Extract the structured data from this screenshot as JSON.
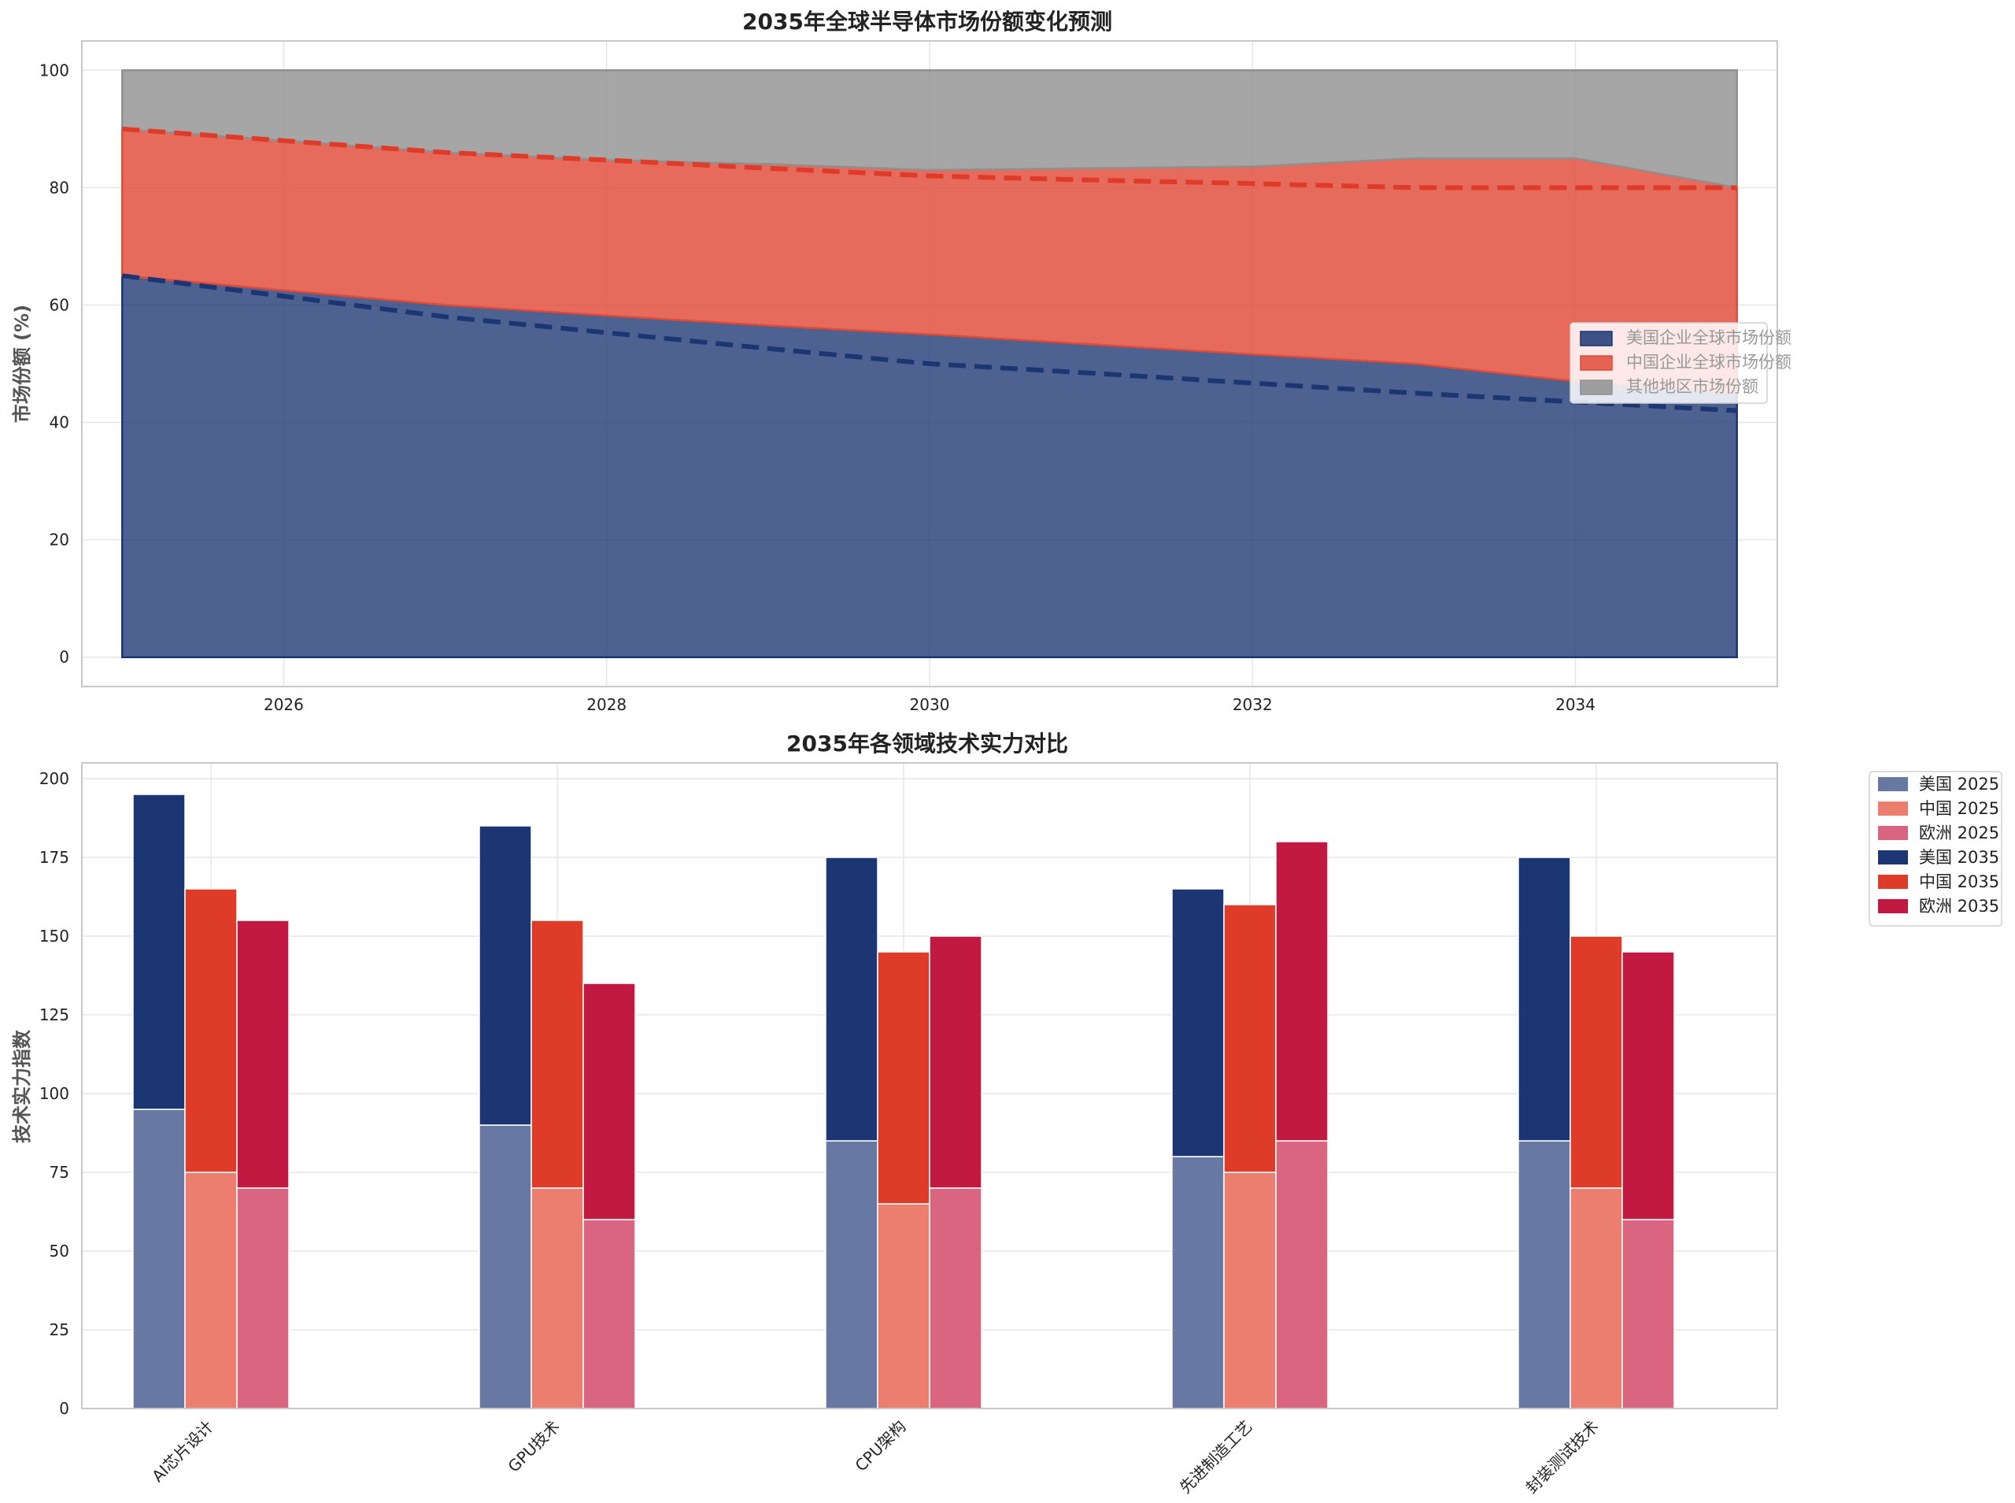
{
  "chart_data": [
    {
      "type": "area",
      "title": "2035年全球半导体市场份额变化预测",
      "xlabel": "",
      "ylabel": "市场份额 (%)",
      "xlim": [
        2024.75,
        2035.25
      ],
      "ylim": [
        -5,
        105
      ],
      "x_ticks": [
        2026,
        2028,
        2030,
        2032,
        2034
      ],
      "y_ticks": [
        0,
        20,
        40,
        60,
        80,
        100
      ],
      "grid": true,
      "legend_position": "center-right",
      "x": [
        2025,
        2026,
        2027,
        2028,
        2029,
        2030,
        2031,
        2032,
        2033,
        2034,
        2035
      ],
      "series": [
        {
          "name": "美国企业全球市场份额",
          "color": "#1b3672",
          "values": [
            65,
            62.5,
            60,
            58.2,
            56.5,
            55,
            53.3,
            51.6,
            50,
            47,
            45
          ]
        },
        {
          "name": "中国企业全球市场份额",
          "color": "#e04b38",
          "values": [
            25,
            25.5,
            26,
            26.5,
            27.5,
            28,
            30,
            32,
            35,
            38,
            35
          ]
        },
        {
          "name": "其他地区市场份额",
          "color": "#909090",
          "values": [
            10,
            12,
            14,
            15.3,
            16,
            17,
            16.7,
            16.4,
            15,
            15,
            20
          ]
        }
      ],
      "reference_lines": [
        {
          "name": "us_trend",
          "color": "#1b3672",
          "values": [
            65,
            61.5,
            58,
            55.3,
            52.6,
            50,
            48.4,
            46.7,
            45,
            43.5,
            42
          ]
        },
        {
          "name": "us_cn_trend",
          "color": "#e03a28",
          "values": [
            90,
            88,
            86,
            84.7,
            83.3,
            82,
            81.3,
            80.7,
            80,
            80,
            80
          ]
        }
      ]
    },
    {
      "type": "bar",
      "subtype": "grouped-stacked",
      "title": "2035年各领域技术实力对比",
      "xlabel": "",
      "ylabel": "技术实力指数",
      "ylim": [
        0,
        205
      ],
      "y_ticks": [
        0,
        25,
        50,
        75,
        100,
        125,
        150,
        175,
        200
      ],
      "grid": true,
      "legend_position": "outside-top-right",
      "categories": [
        "AI芯片设计",
        "GPU技术",
        "CPU架构",
        "先进制造工艺",
        "封装测试技术"
      ],
      "series": [
        {
          "name": "美国 2025",
          "group": "美国",
          "color": "#6779a3",
          "values": [
            95,
            90,
            85,
            80,
            85
          ]
        },
        {
          "name": "中国 2025",
          "group": "中国",
          "color": "#ec7e70",
          "values": [
            75,
            70,
            65,
            75,
            70
          ]
        },
        {
          "name": "欧洲 2025",
          "group": "欧洲",
          "color": "#d96581",
          "values": [
            70,
            60,
            70,
            85,
            60
          ]
        },
        {
          "name": "美国 2035",
          "group": "美国",
          "color": "#1b3672",
          "values": [
            100,
            95,
            90,
            85,
            90
          ]
        },
        {
          "name": "中国 2035",
          "group": "中国",
          "color": "#de3c28",
          "values": [
            90,
            85,
            80,
            85,
            80
          ]
        },
        {
          "name": "欧洲 2035",
          "group": "欧洲",
          "color": "#c21942",
          "values": [
            85,
            75,
            80,
            95,
            85
          ]
        }
      ]
    }
  ]
}
